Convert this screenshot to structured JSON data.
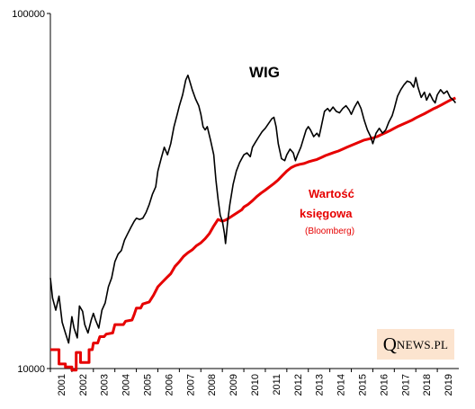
{
  "chart_data": {
    "type": "line",
    "yscale": "log",
    "ylim": [
      10000,
      100000
    ],
    "y_tick_labels": [
      "100000",
      "10000"
    ],
    "xlim": [
      2001.0,
      2020.0
    ],
    "x_tick_labels": [
      "2001",
      "2002",
      "2003",
      "2004",
      "2005",
      "2006",
      "2007",
      "2008",
      "2009",
      "2010",
      "2011",
      "2012",
      "2013",
      "2014",
      "2015",
      "2016",
      "2017",
      "2018",
      "2019"
    ],
    "series": [
      {
        "name": "WIG",
        "color": "#000000",
        "points": [
          [
            2001.0,
            18000
          ],
          [
            2001.1,
            15800
          ],
          [
            2001.25,
            14600
          ],
          [
            2001.4,
            16000
          ],
          [
            2001.55,
            13500
          ],
          [
            2001.7,
            12600
          ],
          [
            2001.85,
            11800
          ],
          [
            2002.0,
            14000
          ],
          [
            2002.1,
            13000
          ],
          [
            2002.25,
            12200
          ],
          [
            2002.35,
            15000
          ],
          [
            2002.5,
            14500
          ],
          [
            2002.6,
            13300
          ],
          [
            2002.75,
            12600
          ],
          [
            2002.9,
            13700
          ],
          [
            2003.0,
            14300
          ],
          [
            2003.1,
            13700
          ],
          [
            2003.25,
            13000
          ],
          [
            2003.4,
            14600
          ],
          [
            2003.55,
            15300
          ],
          [
            2003.7,
            17000
          ],
          [
            2003.85,
            18000
          ],
          [
            2004.0,
            20000
          ],
          [
            2004.15,
            21000
          ],
          [
            2004.3,
            21500
          ],
          [
            2004.45,
            23000
          ],
          [
            2004.6,
            24000
          ],
          [
            2004.75,
            25000
          ],
          [
            2004.9,
            26000
          ],
          [
            2005.0,
            26500
          ],
          [
            2005.15,
            26300
          ],
          [
            2005.3,
            26500
          ],
          [
            2005.45,
            27500
          ],
          [
            2005.6,
            29000
          ],
          [
            2005.75,
            31000
          ],
          [
            2005.9,
            32500
          ],
          [
            2006.0,
            36000
          ],
          [
            2006.15,
            39000
          ],
          [
            2006.3,
            42000
          ],
          [
            2006.45,
            40000
          ],
          [
            2006.6,
            43000
          ],
          [
            2006.75,
            48000
          ],
          [
            2006.9,
            52000
          ],
          [
            2007.0,
            55000
          ],
          [
            2007.15,
            59000
          ],
          [
            2007.3,
            65000
          ],
          [
            2007.4,
            67000
          ],
          [
            2007.5,
            64000
          ],
          [
            2007.6,
            61000
          ],
          [
            2007.75,
            57500
          ],
          [
            2007.9,
            55000
          ],
          [
            2008.0,
            52000
          ],
          [
            2008.1,
            48000
          ],
          [
            2008.2,
            47000
          ],
          [
            2008.3,
            48000
          ],
          [
            2008.45,
            44000
          ],
          [
            2008.6,
            40000
          ],
          [
            2008.7,
            34000
          ],
          [
            2008.8,
            30000
          ],
          [
            2008.9,
            27000
          ],
          [
            2009.0,
            26000
          ],
          [
            2009.1,
            24000
          ],
          [
            2009.15,
            22500
          ],
          [
            2009.25,
            26000
          ],
          [
            2009.35,
            29000
          ],
          [
            2009.5,
            33000
          ],
          [
            2009.65,
            36000
          ],
          [
            2009.8,
            38000
          ],
          [
            2009.9,
            39000
          ],
          [
            2010.0,
            40000
          ],
          [
            2010.15,
            40500
          ],
          [
            2010.3,
            39500
          ],
          [
            2010.4,
            42000
          ],
          [
            2010.55,
            43500
          ],
          [
            2010.7,
            45000
          ],
          [
            2010.85,
            46500
          ],
          [
            2011.0,
            47500
          ],
          [
            2011.15,
            49000
          ],
          [
            2011.3,
            50500
          ],
          [
            2011.4,
            51000
          ],
          [
            2011.5,
            48000
          ],
          [
            2011.6,
            43000
          ],
          [
            2011.75,
            39000
          ],
          [
            2011.9,
            38500
          ],
          [
            2012.0,
            40000
          ],
          [
            2012.15,
            41500
          ],
          [
            2012.3,
            40500
          ],
          [
            2012.4,
            38500
          ],
          [
            2012.5,
            40000
          ],
          [
            2012.65,
            42000
          ],
          [
            2012.8,
            45000
          ],
          [
            2012.9,
            47000
          ],
          [
            2013.0,
            48000
          ],
          [
            2013.1,
            47000
          ],
          [
            2013.25,
            45000
          ],
          [
            2013.4,
            46000
          ],
          [
            2013.5,
            45000
          ],
          [
            2013.6,
            48000
          ],
          [
            2013.75,
            53000
          ],
          [
            2013.9,
            54000
          ],
          [
            2014.0,
            53000
          ],
          [
            2014.15,
            54500
          ],
          [
            2014.3,
            53000
          ],
          [
            2014.45,
            52500
          ],
          [
            2014.6,
            54000
          ],
          [
            2014.75,
            55000
          ],
          [
            2014.9,
            53500
          ],
          [
            2015.0,
            52000
          ],
          [
            2015.15,
            54500
          ],
          [
            2015.3,
            56500
          ],
          [
            2015.45,
            54000
          ],
          [
            2015.6,
            50000
          ],
          [
            2015.75,
            47000
          ],
          [
            2015.9,
            45000
          ],
          [
            2016.0,
            43000
          ],
          [
            2016.15,
            46000
          ],
          [
            2016.3,
            47500
          ],
          [
            2016.45,
            46000
          ],
          [
            2016.6,
            47000
          ],
          [
            2016.75,
            49500
          ],
          [
            2016.9,
            51500
          ],
          [
            2017.0,
            54000
          ],
          [
            2017.15,
            58500
          ],
          [
            2017.3,
            61000
          ],
          [
            2017.45,
            63000
          ],
          [
            2017.6,
            64500
          ],
          [
            2017.75,
            64000
          ],
          [
            2017.9,
            62000
          ],
          [
            2018.0,
            66000
          ],
          [
            2018.1,
            62000
          ],
          [
            2018.25,
            58000
          ],
          [
            2018.4,
            60000
          ],
          [
            2018.5,
            57000
          ],
          [
            2018.65,
            59500
          ],
          [
            2018.8,
            57000
          ],
          [
            2018.9,
            56000
          ],
          [
            2019.0,
            59000
          ],
          [
            2019.15,
            61000
          ],
          [
            2019.3,
            59500
          ],
          [
            2019.45,
            60500
          ],
          [
            2019.6,
            58000
          ],
          [
            2019.75,
            57000
          ],
          [
            2019.85,
            56000
          ]
        ]
      },
      {
        "name": "Wartość księgowa",
        "color": "#e60000",
        "points": [
          [
            2001.0,
            11300
          ],
          [
            2001.4,
            11300
          ],
          [
            2001.4,
            10300
          ],
          [
            2001.7,
            10300
          ],
          [
            2001.7,
            10100
          ],
          [
            2002.0,
            10100
          ],
          [
            2002.0,
            9900
          ],
          [
            2002.2,
            9900
          ],
          [
            2002.2,
            11100
          ],
          [
            2002.4,
            11100
          ],
          [
            2002.4,
            10400
          ],
          [
            2002.8,
            10400
          ],
          [
            2002.8,
            11300
          ],
          [
            2002.95,
            11300
          ],
          [
            2003.0,
            11800
          ],
          [
            2003.2,
            11800
          ],
          [
            2003.3,
            12300
          ],
          [
            2003.5,
            12300
          ],
          [
            2003.6,
            12500
          ],
          [
            2003.9,
            12600
          ],
          [
            2004.0,
            13300
          ],
          [
            2004.4,
            13300
          ],
          [
            2004.5,
            13600
          ],
          [
            2004.8,
            13700
          ],
          [
            2004.9,
            14200
          ],
          [
            2005.0,
            14800
          ],
          [
            2005.2,
            14800
          ],
          [
            2005.3,
            15200
          ],
          [
            2005.6,
            15400
          ],
          [
            2005.8,
            16100
          ],
          [
            2006.0,
            17000
          ],
          [
            2006.2,
            17500
          ],
          [
            2006.4,
            18000
          ],
          [
            2006.6,
            18500
          ],
          [
            2006.8,
            19400
          ],
          [
            2007.0,
            20000
          ],
          [
            2007.2,
            20700
          ],
          [
            2007.4,
            21200
          ],
          [
            2007.6,
            21600
          ],
          [
            2007.8,
            22200
          ],
          [
            2008.0,
            22600
          ],
          [
            2008.2,
            23200
          ],
          [
            2008.4,
            24000
          ],
          [
            2008.6,
            25200
          ],
          [
            2008.8,
            26300
          ],
          [
            2009.0,
            26000
          ],
          [
            2009.15,
            26200
          ],
          [
            2009.3,
            26500
          ],
          [
            2009.5,
            27000
          ],
          [
            2009.7,
            27500
          ],
          [
            2009.9,
            28000
          ],
          [
            2010.0,
            28500
          ],
          [
            2010.2,
            29000
          ],
          [
            2010.4,
            29700
          ],
          [
            2010.6,
            30500
          ],
          [
            2010.8,
            31200
          ],
          [
            2011.0,
            31800
          ],
          [
            2011.2,
            32500
          ],
          [
            2011.4,
            33200
          ],
          [
            2011.6,
            34000
          ],
          [
            2011.8,
            35000
          ],
          [
            2012.0,
            36000
          ],
          [
            2012.2,
            36800
          ],
          [
            2012.4,
            37300
          ],
          [
            2012.6,
            37600
          ],
          [
            2012.8,
            37800
          ],
          [
            2013.0,
            38200
          ],
          [
            2013.2,
            38500
          ],
          [
            2013.4,
            38800
          ],
          [
            2013.6,
            39300
          ],
          [
            2013.8,
            39800
          ],
          [
            2014.0,
            40200
          ],
          [
            2014.2,
            40600
          ],
          [
            2014.4,
            41000
          ],
          [
            2014.6,
            41500
          ],
          [
            2014.8,
            42000
          ],
          [
            2015.0,
            42500
          ],
          [
            2015.2,
            43000
          ],
          [
            2015.4,
            43500
          ],
          [
            2015.6,
            44000
          ],
          [
            2015.8,
            44300
          ],
          [
            2016.0,
            44600
          ],
          [
            2016.2,
            45000
          ],
          [
            2016.4,
            45600
          ],
          [
            2016.6,
            46200
          ],
          [
            2016.8,
            46800
          ],
          [
            2017.0,
            47500
          ],
          [
            2017.2,
            48200
          ],
          [
            2017.4,
            48800
          ],
          [
            2017.6,
            49400
          ],
          [
            2017.8,
            50000
          ],
          [
            2018.0,
            50800
          ],
          [
            2018.2,
            51500
          ],
          [
            2018.4,
            52200
          ],
          [
            2018.6,
            53000
          ],
          [
            2018.8,
            53800
          ],
          [
            2019.0,
            54500
          ],
          [
            2019.2,
            55300
          ],
          [
            2019.4,
            56200
          ],
          [
            2019.6,
            57000
          ],
          [
            2019.85,
            57800
          ]
        ]
      }
    ],
    "annotations": {
      "wig_title": "WIG",
      "bv_line1": "Wartość",
      "bv_line2": "księgowa",
      "bv_source": "(Bloomberg)"
    }
  },
  "logo": {
    "q": "Q",
    "rest": "NEWS.PL"
  }
}
